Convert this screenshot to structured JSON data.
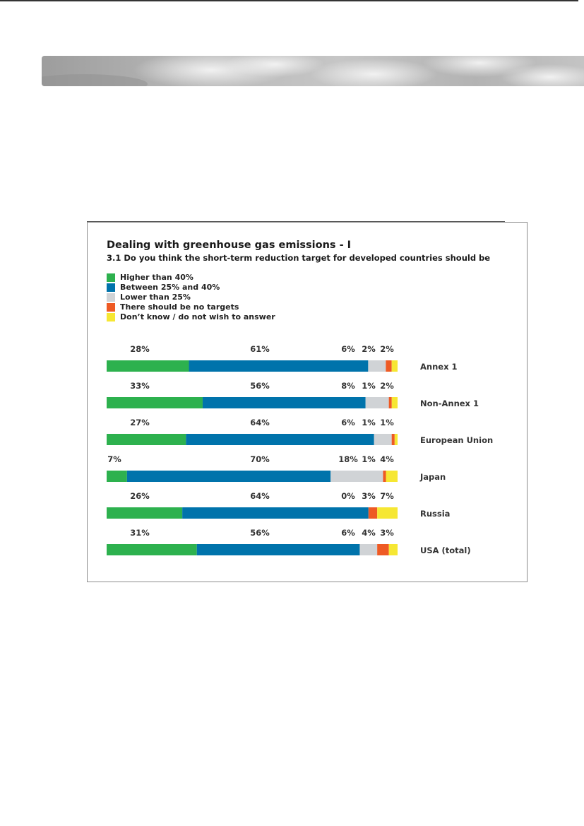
{
  "chart_data": {
    "type": "bar",
    "orientation": "horizontal-stacked",
    "title": "Dealing with greenhouse gas emissions - I",
    "subtitle": "3.1 Do you think the short-term reduction target for developed countries should be",
    "categories": [
      "Annex 1",
      "Non-Annex 1",
      "European Union",
      "Japan",
      "Russia",
      "USA (total)"
    ],
    "series": [
      {
        "name": "Higher than 40%",
        "color": "#2db14e",
        "values": [
          28,
          33,
          27,
          7,
          26,
          31
        ],
        "labels": [
          "28%",
          "33%",
          "27%",
          "7%",
          "26%",
          "31%"
        ]
      },
      {
        "name": "Between 25% and 40%",
        "color": "#0073ab",
        "values": [
          61,
          56,
          64,
          70,
          64,
          56
        ],
        "labels": [
          "61%",
          "56%",
          "64%",
          "70%",
          "64%",
          "56%"
        ]
      },
      {
        "name": "Lower than 25%",
        "color": "#d0d3d6",
        "values": [
          6,
          8,
          6,
          18,
          0,
          6
        ],
        "labels": [
          "6%",
          "8%",
          "6%",
          "18%",
          "0%",
          "6%"
        ]
      },
      {
        "name": "There should be no targets",
        "color": "#ee5a24",
        "values": [
          2,
          1,
          1,
          1,
          3,
          4
        ],
        "labels": [
          "2%",
          "1%",
          "1%",
          "1%",
          "3%",
          "4%"
        ]
      },
      {
        "name": "Don't know / do not wish to answer",
        "color": "#f6e733",
        "values": [
          2,
          2,
          1,
          4,
          7,
          3
        ],
        "labels": [
          "2%",
          "2%",
          "1%",
          "4%",
          "7%",
          "3%"
        ]
      }
    ],
    "xlim": [
      0,
      100
    ],
    "legend": "top-left",
    "grid": false
  },
  "legend_labels": [
    "Higher than 40%",
    "Between 25% and 40%",
    "Lower than 25%",
    "There should be no targets",
    "Don’t know / do not wish to answer"
  ]
}
